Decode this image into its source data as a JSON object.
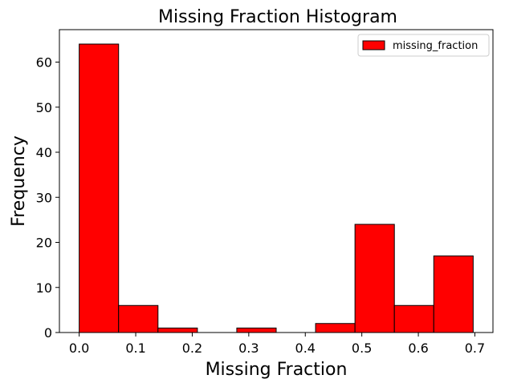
{
  "chart_data": {
    "type": "bar",
    "title": "Missing Fraction Histogram",
    "xlabel": "Missing Fraction",
    "ylabel": "Frequency",
    "bin_edges": [
      0.0,
      0.0697,
      0.1394,
      0.2091,
      0.2788,
      0.3485,
      0.4182,
      0.4879,
      0.5576,
      0.6273,
      0.697
    ],
    "series": [
      {
        "name": "missing_fraction",
        "values": [
          64,
          6,
          1,
          0,
          1,
          0,
          2,
          24,
          6,
          17
        ],
        "color": "#ff0000",
        "edge_color": "#000000"
      }
    ],
    "xlim": [
      -0.035,
      0.732
    ],
    "ylim": [
      0,
      67.2
    ],
    "xticks": [
      0.0,
      0.1,
      0.2,
      0.3,
      0.4,
      0.5,
      0.6,
      0.7
    ],
    "xtick_labels": [
      "0.0",
      "0.1",
      "0.2",
      "0.3",
      "0.4",
      "0.5",
      "0.6",
      "0.7"
    ],
    "yticks": [
      0,
      10,
      20,
      30,
      40,
      50,
      60
    ],
    "ytick_labels": [
      "0",
      "10",
      "20",
      "30",
      "40",
      "50",
      "60"
    ],
    "grid": false,
    "legend": {
      "placement": "top-right",
      "label": "missing_fraction"
    }
  }
}
